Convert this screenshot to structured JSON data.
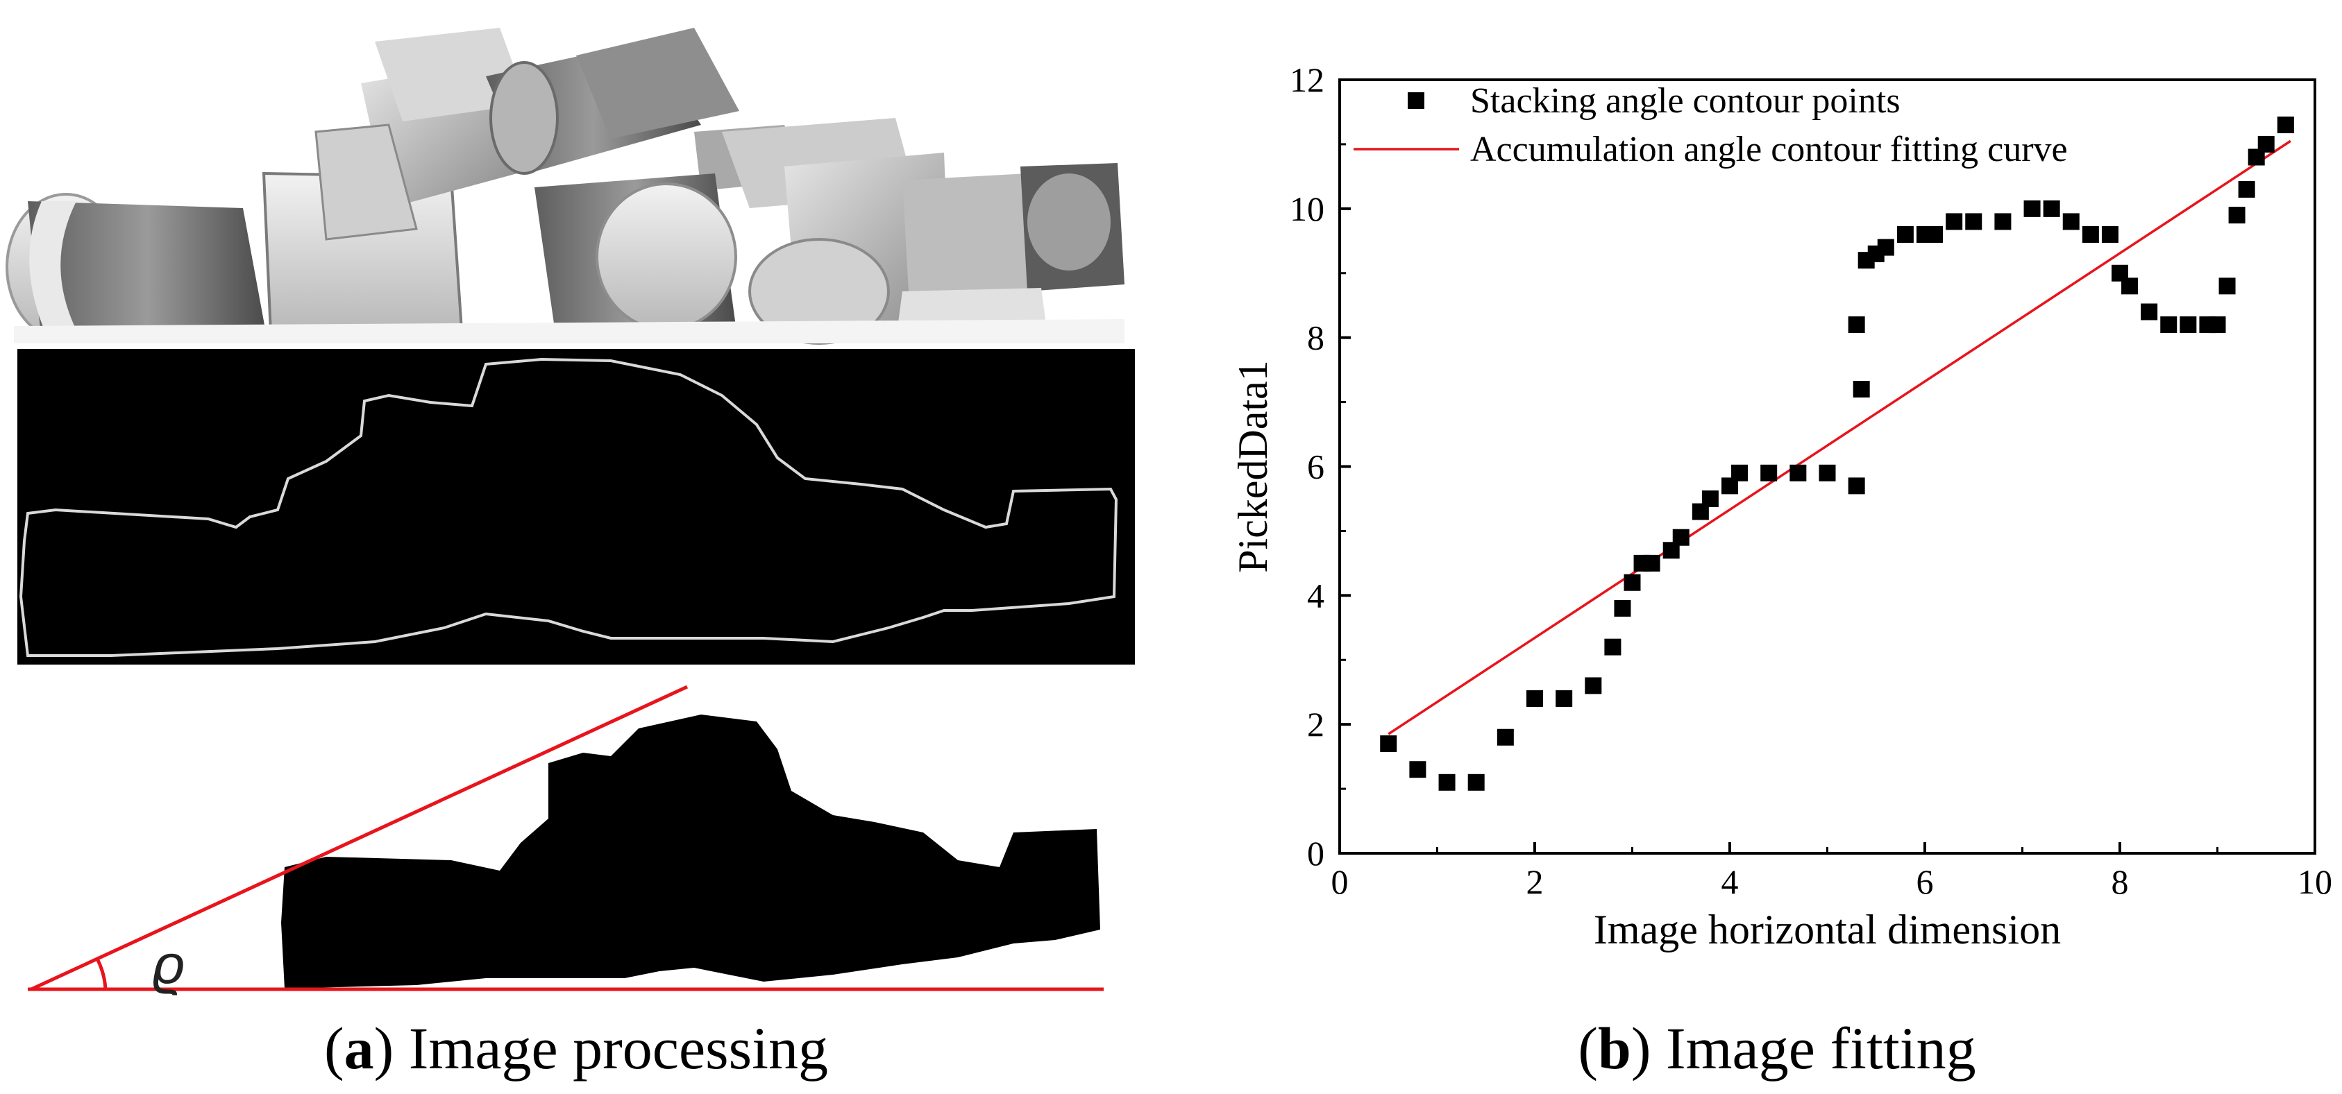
{
  "panel_a": {
    "caption_letter": "a",
    "caption_text": "Image processing",
    "angle_symbol": "ϱ"
  },
  "panel_b": {
    "caption_letter": "b",
    "caption_text": "Image fitting"
  },
  "colors": {
    "fit_line": "#e8141c",
    "points": "#000000",
    "panel_dark": "#000000",
    "contour": "#d9d9d9"
  },
  "chart_data": {
    "type": "scatter",
    "title": "",
    "xlabel": "Image horizontal dimension",
    "ylabel": "PickedData1",
    "xlim": [
      0,
      10
    ],
    "ylim": [
      0,
      12
    ],
    "xticks": [
      0,
      2,
      4,
      6,
      8,
      10
    ],
    "yticks": [
      0,
      2,
      4,
      6,
      8,
      10,
      12
    ],
    "grid": false,
    "legend_position": "top-left",
    "series": [
      {
        "name": "Stacking angle contour points",
        "kind": "scatter",
        "marker": "square",
        "x": [
          0.5,
          0.8,
          1.1,
          1.4,
          1.7,
          2.0,
          2.3,
          2.6,
          2.8,
          2.9,
          3.0,
          3.1,
          3.2,
          3.4,
          3.5,
          3.7,
          3.8,
          4.0,
          4.1,
          4.4,
          4.7,
          5.0,
          5.3,
          5.35,
          5.3,
          5.4,
          5.5,
          5.6,
          5.8,
          6.0,
          6.1,
          6.3,
          6.5,
          6.8,
          7.1,
          7.3,
          7.5,
          7.7,
          7.9,
          8.0,
          8.1,
          8.3,
          8.5,
          8.7,
          8.9,
          9.0,
          9.1,
          9.2,
          9.3,
          9.4,
          9.5,
          9.7
        ],
        "y": [
          1.7,
          1.3,
          1.1,
          1.1,
          1.8,
          2.4,
          2.4,
          2.6,
          3.2,
          3.8,
          4.2,
          4.5,
          4.5,
          4.7,
          4.9,
          5.3,
          5.5,
          5.7,
          5.9,
          5.9,
          5.9,
          5.9,
          5.7,
          7.2,
          8.2,
          9.2,
          9.3,
          9.4,
          9.6,
          9.6,
          9.6,
          9.8,
          9.8,
          9.8,
          10.0,
          10.0,
          9.8,
          9.6,
          9.6,
          9.0,
          8.8,
          8.4,
          8.2,
          8.2,
          8.2,
          8.2,
          8.8,
          9.9,
          10.3,
          10.8,
          11.0,
          11.3
        ]
      },
      {
        "name": "Accumulation angle contour fitting curve",
        "kind": "line",
        "x": [
          0.5,
          9.75
        ],
        "y": [
          1.85,
          11.05
        ]
      }
    ]
  }
}
